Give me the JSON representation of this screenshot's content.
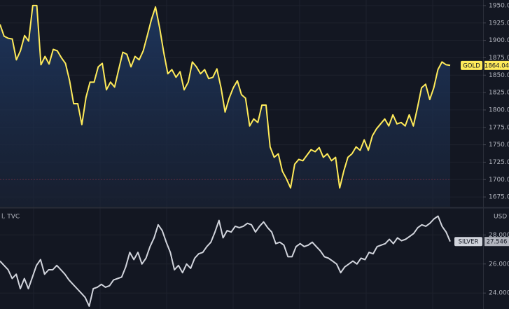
{
  "chart_data": [
    {
      "type": "area",
      "series": [
        {
          "name": "GOLD",
          "color": "#ffeb5a",
          "values": [
            1923,
            1906,
            1903,
            1902,
            1872,
            1885,
            1907,
            1899,
            1950,
            1950,
            1865,
            1877,
            1866,
            1887,
            1885,
            1875,
            1867,
            1842,
            1809,
            1809,
            1779,
            1818,
            1840,
            1840,
            1862,
            1867,
            1829,
            1840,
            1833,
            1858,
            1883,
            1880,
            1862,
            1877,
            1872,
            1885,
            1907,
            1930,
            1948,
            1918,
            1883,
            1852,
            1858,
            1847,
            1855,
            1829,
            1840,
            1869,
            1862,
            1852,
            1858,
            1845,
            1847,
            1859,
            1832,
            1797,
            1817,
            1832,
            1842,
            1822,
            1817,
            1777,
            1787,
            1782,
            1807,
            1807,
            1747,
            1732,
            1737,
            1712,
            1701,
            1688,
            1722,
            1729,
            1727,
            1735,
            1743,
            1740,
            1746,
            1732,
            1737,
            1727,
            1732,
            1688,
            1712,
            1732,
            1737,
            1747,
            1742,
            1757,
            1742,
            1763,
            1773,
            1780,
            1787,
            1777,
            1793,
            1780,
            1782,
            1777,
            1793,
            1777,
            1803,
            1832,
            1837,
            1815,
            1832,
            1858,
            1869,
            1865,
            1864.04
          ]
        }
      ],
      "price_line": 1700,
      "ylim": [
        1661,
        1958
      ],
      "yticks": [
        {
          "value": 1950,
          "label": "1950.00"
        },
        {
          "value": 1925,
          "label": "1925.00"
        },
        {
          "value": 1900,
          "label": "1900.00"
        },
        {
          "value": 1875,
          "label": "1875.00"
        },
        {
          "value": 1850,
          "label": "1850.00"
        },
        {
          "value": 1825,
          "label": "1825.00"
        },
        {
          "value": 1800,
          "label": "1800.00"
        },
        {
          "value": 1775,
          "label": "1775.00"
        },
        {
          "value": 1750,
          "label": "1750.00"
        },
        {
          "value": 1725,
          "label": "1725.00"
        },
        {
          "value": 1700,
          "label": "1700.00"
        },
        {
          "value": 1675,
          "label": "1675.00"
        }
      ],
      "grid": true
    },
    {
      "type": "line",
      "source": "l, TVC",
      "unit": "USD",
      "series": [
        {
          "name": "SILVER",
          "color": "#d1d4dc",
          "values": [
            26.2,
            25.9,
            25.6,
            25.0,
            25.3,
            24.3,
            25.0,
            24.3,
            25.1,
            25.9,
            26.3,
            25.3,
            25.6,
            25.6,
            25.9,
            25.6,
            25.3,
            24.9,
            24.6,
            24.3,
            24.0,
            23.7,
            23.1,
            24.3,
            24.4,
            24.6,
            24.4,
            24.5,
            24.9,
            25.0,
            25.1,
            25.8,
            26.8,
            26.3,
            26.8,
            26.0,
            26.4,
            27.2,
            27.8,
            28.7,
            28.3,
            27.5,
            26.8,
            25.6,
            25.9,
            25.4,
            26.0,
            25.7,
            26.4,
            26.7,
            26.8,
            27.2,
            27.5,
            28.2,
            29.0,
            27.8,
            28.3,
            28.2,
            28.6,
            28.5,
            28.6,
            28.8,
            28.7,
            28.2,
            28.6,
            28.9,
            28.5,
            28.2,
            27.4,
            27.5,
            27.3,
            26.5,
            26.5,
            27.2,
            27.4,
            27.2,
            27.3,
            27.5,
            27.2,
            26.9,
            26.5,
            26.4,
            26.2,
            26.0,
            25.4,
            25.8,
            26.0,
            26.2,
            26.0,
            26.4,
            26.3,
            26.8,
            26.7,
            27.2,
            27.3,
            27.4,
            27.7,
            27.4,
            27.8,
            27.6,
            27.7,
            27.9,
            28.1,
            28.5,
            28.7,
            28.6,
            28.8,
            29.1,
            29.3,
            28.6,
            28.2,
            27.546
          ]
        }
      ],
      "ylim": [
        22.9,
        29.8
      ],
      "yticks": [
        {
          "value": 28,
          "label": "28.000"
        },
        {
          "value": 26,
          "label": "26.000"
        },
        {
          "value": 24,
          "label": "24.000"
        }
      ],
      "grid": true
    }
  ]
}
